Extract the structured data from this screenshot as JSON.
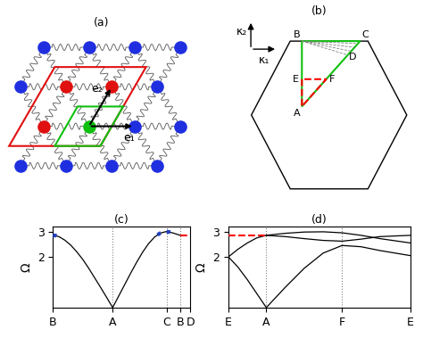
{
  "diagram": {
    "a": {
      "label": "(a)",
      "vectors": [
        "e₁",
        "e₂"
      ]
    },
    "b": {
      "label": "(b)",
      "axes": [
        "κ₁",
        "κ₂"
      ],
      "points": [
        "A",
        "B",
        "C",
        "D",
        "E",
        "F"
      ]
    }
  },
  "chart_data": [
    {
      "type": "line",
      "title": "(c)",
      "y_label": "Ω",
      "xlim": [
        0,
        2.3
      ],
      "xticks": [
        {
          "value": 0,
          "label": "B"
        },
        {
          "value": 1,
          "label": "A"
        },
        {
          "value": 1.9,
          "label": "C"
        },
        {
          "value": 2.13,
          "label": "B"
        },
        {
          "value": 2.3,
          "label": "D"
        }
      ],
      "ylim": [
        0,
        3.2
      ],
      "yticks": [
        2,
        3
      ],
      "series": [
        {
          "color": "#000000",
          "line_style": "solid",
          "x": [
            0,
            0.1,
            0.2,
            0.3,
            0.4,
            0.5,
            0.6,
            0.7,
            0.8,
            0.9,
            1.0,
            1.1,
            1.2,
            1.3,
            1.4,
            1.5,
            1.6,
            1.7,
            1.8,
            1.9,
            2.0,
            2.13
          ],
          "values": [
            2.85,
            2.8,
            2.66,
            2.46,
            2.2,
            1.9,
            1.55,
            1.17,
            0.79,
            0.4,
            0.0,
            0.45,
            0.9,
            1.35,
            1.78,
            2.18,
            2.52,
            2.78,
            2.94,
            3.0,
            2.95,
            2.85
          ]
        },
        {
          "color": "#2040c0",
          "line_style": "dotted",
          "x": [
            0,
            0.05,
            0.1
          ],
          "values": [
            2.85,
            2.84,
            2.8
          ]
        },
        {
          "color": "#2040c0",
          "line_style": "dotted",
          "x": [
            1.75,
            1.8,
            1.85,
            1.9,
            1.95,
            2.0
          ],
          "values": [
            2.87,
            2.94,
            2.98,
            3.0,
            2.98,
            2.95
          ]
        },
        {
          "color": "#ff0000",
          "line_style": "dashed",
          "x": [
            2.13,
            2.3
          ],
          "values": [
            2.83,
            2.83
          ]
        }
      ]
    },
    {
      "type": "line",
      "title": "(d)",
      "y_label": "Ω",
      "xlim": [
        0,
        4.8
      ],
      "xticks": [
        {
          "value": 0,
          "label": "E"
        },
        {
          "value": 1,
          "label": "A"
        },
        {
          "value": 3,
          "label": "F"
        },
        {
          "value": 4.8,
          "label": "E"
        }
      ],
      "ylim": [
        0,
        3.2
      ],
      "yticks": [
        2,
        3
      ],
      "series": [
        {
          "color": "#000000",
          "line_style": "solid",
          "x": [
            0,
            0.25,
            0.5,
            0.75,
            1,
            1.5,
            2,
            2.5,
            3,
            3.5,
            4,
            4.8
          ],
          "values": [
            2.0,
            1.6,
            1.1,
            0.55,
            0.0,
            0.8,
            1.55,
            2.15,
            2.45,
            2.4,
            2.25,
            2.05
          ]
        },
        {
          "color": "#000000",
          "line_style": "solid",
          "x": [
            0,
            0.25,
            0.5,
            0.75,
            1,
            1.5,
            2,
            2.5,
            3,
            3.5,
            4,
            4.8
          ],
          "values": [
            2.0,
            2.3,
            2.55,
            2.75,
            2.85,
            2.8,
            2.72,
            2.65,
            2.62,
            2.7,
            2.8,
            2.85
          ]
        },
        {
          "color": "#000000",
          "line_style": "solid",
          "x": [
            1,
            1.5,
            2,
            2.5,
            3,
            3.5,
            4,
            4.8
          ],
          "values": [
            2.85,
            2.93,
            2.98,
            2.99,
            2.95,
            2.85,
            2.72,
            2.55
          ]
        },
        {
          "color": "#ff0000",
          "line_style": "dashed",
          "x": [
            0,
            1
          ],
          "values": [
            2.85,
            2.85
          ]
        }
      ]
    }
  ]
}
